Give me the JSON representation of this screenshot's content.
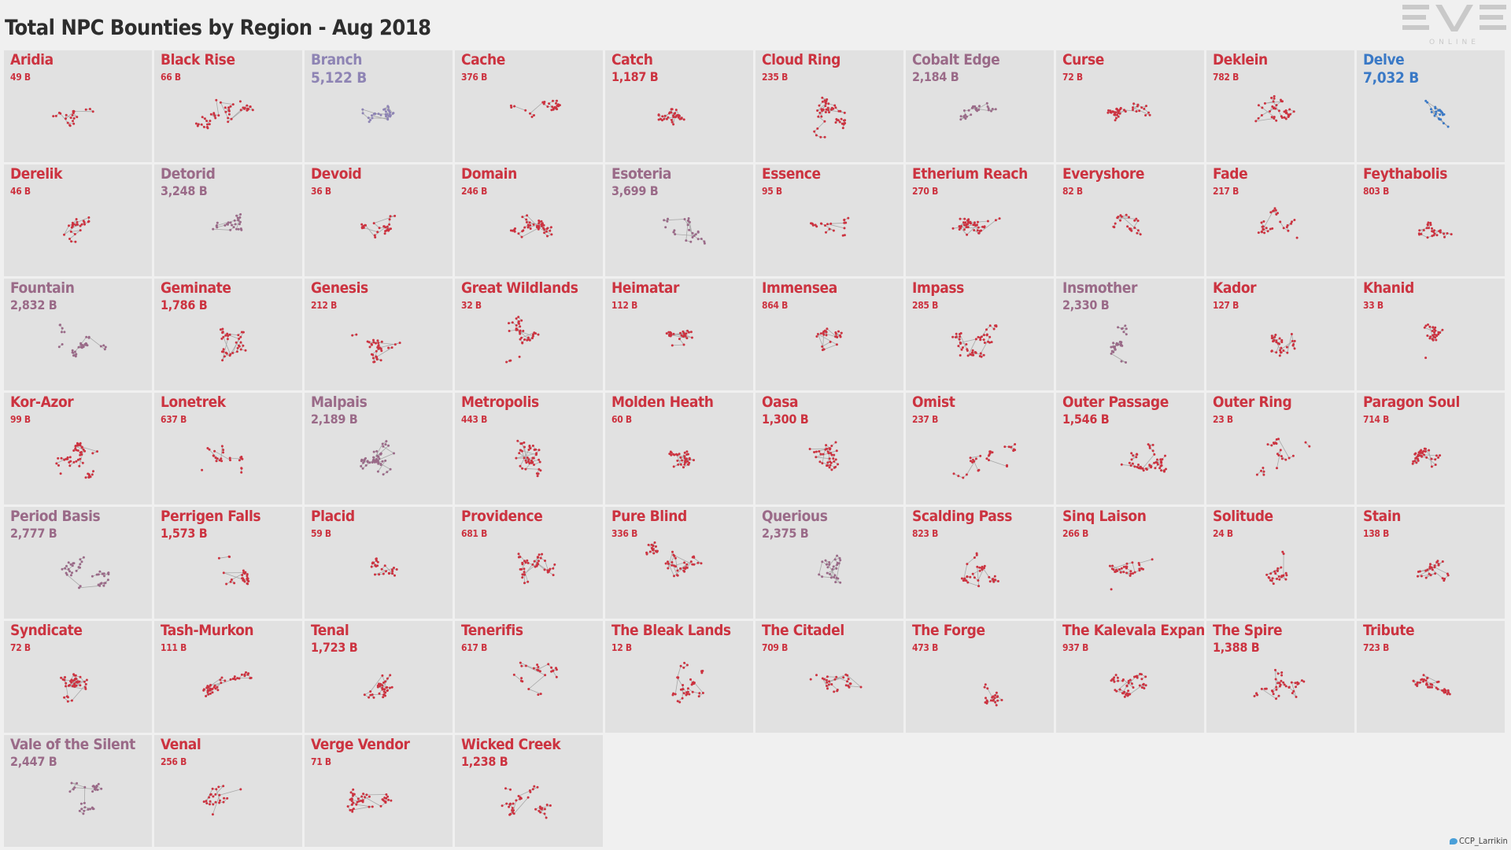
{
  "title": "Total NPC Bounties by Region - Aug 2018",
  "logo": {
    "main": "EVE",
    "sub": "ONLINE",
    "icon": "eve-online-logo"
  },
  "credit": {
    "text": "CCP_Larrikin",
    "icon": "twitter-bird-icon"
  },
  "colors": {
    "low": "#cc3340",
    "mid": "#9a6a88",
    "high": "#8e84b4",
    "top": "#3a79c6",
    "cell_bg": "#e1e1e1",
    "page_bg": "#f0f0f0"
  },
  "chart_data": {
    "type": "small-multiples",
    "title": "Total NPC Bounties by Region - Aug 2018",
    "unit": "B",
    "regions": [
      {
        "name": "Aridia",
        "label": "49 B",
        "value": 49
      },
      {
        "name": "Black Rise",
        "label": "66 B",
        "value": 66
      },
      {
        "name": "Branch",
        "label": "5,122 B",
        "value": 5122
      },
      {
        "name": "Cache",
        "label": "376 B",
        "value": 376
      },
      {
        "name": "Catch",
        "label": "1,187 B",
        "value": 1187
      },
      {
        "name": "Cloud Ring",
        "label": "235 B",
        "value": 235
      },
      {
        "name": "Cobalt Edge",
        "label": "2,184 B",
        "value": 2184
      },
      {
        "name": "Curse",
        "label": "72 B",
        "value": 72
      },
      {
        "name": "Deklein",
        "label": "782 B",
        "value": 782
      },
      {
        "name": "Delve",
        "label": "7,032 B",
        "value": 7032
      },
      {
        "name": "Derelik",
        "label": "46 B",
        "value": 46
      },
      {
        "name": "Detorid",
        "label": "3,248 B",
        "value": 3248
      },
      {
        "name": "Devoid",
        "label": "36 B",
        "value": 36
      },
      {
        "name": "Domain",
        "label": "246 B",
        "value": 246
      },
      {
        "name": "Esoteria",
        "label": "3,699 B",
        "value": 3699
      },
      {
        "name": "Essence",
        "label": "95 B",
        "value": 95
      },
      {
        "name": "Etherium Reach",
        "label": "270 B",
        "value": 270
      },
      {
        "name": "Everyshore",
        "label": "82 B",
        "value": 82
      },
      {
        "name": "Fade",
        "label": "217 B",
        "value": 217
      },
      {
        "name": "Feythabolis",
        "label": "803 B",
        "value": 803
      },
      {
        "name": "Fountain",
        "label": "2,832 B",
        "value": 2832
      },
      {
        "name": "Geminate",
        "label": "1,786 B",
        "value": 1786
      },
      {
        "name": "Genesis",
        "label": "212 B",
        "value": 212
      },
      {
        "name": "Great Wildlands",
        "label": "32 B",
        "value": 32
      },
      {
        "name": "Heimatar",
        "label": "112 B",
        "value": 112
      },
      {
        "name": "Immensea",
        "label": "864 B",
        "value": 864
      },
      {
        "name": "Impass",
        "label": "285 B",
        "value": 285
      },
      {
        "name": "Insmother",
        "label": "2,330 B",
        "value": 2330
      },
      {
        "name": "Kador",
        "label": "127 B",
        "value": 127
      },
      {
        "name": "Khanid",
        "label": "33 B",
        "value": 33
      },
      {
        "name": "Kor-Azor",
        "label": "99 B",
        "value": 99
      },
      {
        "name": "Lonetrek",
        "label": "637 B",
        "value": 637
      },
      {
        "name": "Malpais",
        "label": "2,189 B",
        "value": 2189
      },
      {
        "name": "Metropolis",
        "label": "443 B",
        "value": 443
      },
      {
        "name": "Molden Heath",
        "label": "60 B",
        "value": 60
      },
      {
        "name": "Oasa",
        "label": "1,300 B",
        "value": 1300
      },
      {
        "name": "Omist",
        "label": "237 B",
        "value": 237
      },
      {
        "name": "Outer Passage",
        "label": "1,546 B",
        "value": 1546
      },
      {
        "name": "Outer Ring",
        "label": "23 B",
        "value": 23
      },
      {
        "name": "Paragon Soul",
        "label": "714 B",
        "value": 714
      },
      {
        "name": "Period Basis",
        "label": "2,777 B",
        "value": 2777
      },
      {
        "name": "Perrigen Falls",
        "label": "1,573 B",
        "value": 1573
      },
      {
        "name": "Placid",
        "label": "59 B",
        "value": 59
      },
      {
        "name": "Providence",
        "label": "681 B",
        "value": 681
      },
      {
        "name": "Pure Blind",
        "label": "336 B",
        "value": 336
      },
      {
        "name": "Querious",
        "label": "2,375 B",
        "value": 2375
      },
      {
        "name": "Scalding Pass",
        "label": "823 B",
        "value": 823
      },
      {
        "name": "Sinq Laison",
        "label": "266 B",
        "value": 266
      },
      {
        "name": "Solitude",
        "label": "24 B",
        "value": 24
      },
      {
        "name": "Stain",
        "label": "138 B",
        "value": 138
      },
      {
        "name": "Syndicate",
        "label": "72 B",
        "value": 72
      },
      {
        "name": "Tash-Murkon",
        "label": "111 B",
        "value": 111
      },
      {
        "name": "Tenal",
        "label": "1,723 B",
        "value": 1723
      },
      {
        "name": "Tenerifis",
        "label": "617 B",
        "value": 617
      },
      {
        "name": "The Bleak Lands",
        "label": "12 B",
        "value": 12
      },
      {
        "name": "The Citadel",
        "label": "709 B",
        "value": 709
      },
      {
        "name": "The Forge",
        "label": "473 B",
        "value": 473
      },
      {
        "name": "The Kalevala Expanse",
        "label": "937 B",
        "value": 937
      },
      {
        "name": "The Spire",
        "label": "1,388 B",
        "value": 1388
      },
      {
        "name": "Tribute",
        "label": "723 B",
        "value": 723
      },
      {
        "name": "Vale of the Silent",
        "label": "2,447 B",
        "value": 2447
      },
      {
        "name": "Venal",
        "label": "256 B",
        "value": 256
      },
      {
        "name": "Verge Vendor",
        "label": "71 B",
        "value": 71
      },
      {
        "name": "Wicked Creek",
        "label": "1,238 B",
        "value": 1238
      }
    ]
  }
}
